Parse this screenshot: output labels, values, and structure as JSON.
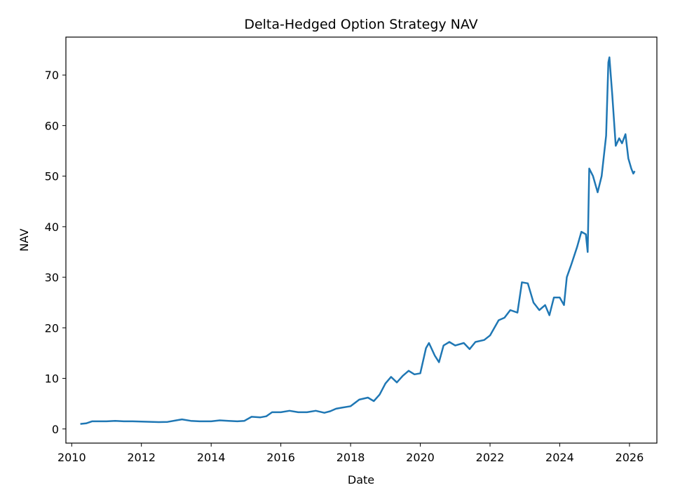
{
  "chart_data": {
    "type": "line",
    "title": "Delta-Hedged Option Strategy NAV",
    "xlabel": "Date",
    "ylabel": "NAV",
    "xlim": [
      "2009-11-01",
      "2026-10-15"
    ],
    "ylim": [
      -2.8,
      77.5
    ],
    "grid": false,
    "legend": "none",
    "x_ticks": [
      "2010",
      "2012",
      "2014",
      "2016",
      "2018",
      "2020",
      "2022",
      "2024",
      "2026"
    ],
    "y_ticks": [
      0,
      10,
      20,
      30,
      40,
      50,
      60,
      70
    ],
    "series": [
      {
        "color": "#1f77b4",
        "points": [
          [
            "2010-04-01",
            1.0
          ],
          [
            "2010-06-01",
            1.1
          ],
          [
            "2010-08-01",
            1.5
          ],
          [
            "2010-10-01",
            1.5
          ],
          [
            "2011-01-01",
            1.5
          ],
          [
            "2011-04-01",
            1.6
          ],
          [
            "2011-07-01",
            1.5
          ],
          [
            "2011-10-01",
            1.5
          ],
          [
            "2012-01-01",
            1.45
          ],
          [
            "2012-07-01",
            1.35
          ],
          [
            "2012-10-01",
            1.4
          ],
          [
            "2013-01-01",
            1.7
          ],
          [
            "2013-03-01",
            1.9
          ],
          [
            "2013-06-01",
            1.6
          ],
          [
            "2013-09-01",
            1.5
          ],
          [
            "2014-01-01",
            1.5
          ],
          [
            "2014-04-01",
            1.7
          ],
          [
            "2014-07-01",
            1.6
          ],
          [
            "2014-10-01",
            1.5
          ],
          [
            "2014-12-15",
            1.6
          ],
          [
            "2015-03-01",
            2.4
          ],
          [
            "2015-06-01",
            2.3
          ],
          [
            "2015-08-01",
            2.5
          ],
          [
            "2015-10-01",
            3.3
          ],
          [
            "2016-01-01",
            3.3
          ],
          [
            "2016-04-01",
            3.6
          ],
          [
            "2016-07-01",
            3.3
          ],
          [
            "2016-10-01",
            3.3
          ],
          [
            "2017-01-01",
            3.6
          ],
          [
            "2017-04-01",
            3.2
          ],
          [
            "2017-06-01",
            3.5
          ],
          [
            "2017-08-01",
            4.0
          ],
          [
            "2017-10-01",
            4.2
          ],
          [
            "2018-01-01",
            4.5
          ],
          [
            "2018-04-01",
            5.8
          ],
          [
            "2018-07-01",
            6.2
          ],
          [
            "2018-09-01",
            5.5
          ],
          [
            "2018-11-01",
            6.8
          ],
          [
            "2019-01-01",
            9.0
          ],
          [
            "2019-03-01",
            10.3
          ],
          [
            "2019-05-01",
            9.2
          ],
          [
            "2019-07-01",
            10.5
          ],
          [
            "2019-09-01",
            11.5
          ],
          [
            "2019-11-01",
            10.8
          ],
          [
            "2020-01-01",
            11.0
          ],
          [
            "2020-03-01",
            16.0
          ],
          [
            "2020-04-01",
            17.0
          ],
          [
            "2020-06-01",
            14.5
          ],
          [
            "2020-07-15",
            13.2
          ],
          [
            "2020-09-01",
            16.5
          ],
          [
            "2020-11-01",
            17.2
          ],
          [
            "2021-01-01",
            16.5
          ],
          [
            "2021-04-01",
            17.0
          ],
          [
            "2021-06-01",
            15.8
          ],
          [
            "2021-08-01",
            17.2
          ],
          [
            "2021-11-01",
            17.6
          ],
          [
            "2022-01-01",
            18.5
          ],
          [
            "2022-04-01",
            21.5
          ],
          [
            "2022-06-01",
            22.0
          ],
          [
            "2022-08-01",
            23.5
          ],
          [
            "2022-10-15",
            23.0
          ],
          [
            "2022-12-01",
            29.0
          ],
          [
            "2023-02-01",
            28.8
          ],
          [
            "2023-04-01",
            25.0
          ],
          [
            "2023-06-01",
            23.5
          ],
          [
            "2023-08-01",
            24.5
          ],
          [
            "2023-09-15",
            22.5
          ],
          [
            "2023-11-01",
            26.0
          ],
          [
            "2024-01-01",
            26.0
          ],
          [
            "2024-02-15",
            24.5
          ],
          [
            "2024-03-15",
            30.0
          ],
          [
            "2024-05-01",
            32.5
          ],
          [
            "2024-07-01",
            36.0
          ],
          [
            "2024-08-15",
            39.0
          ],
          [
            "2024-10-01",
            38.5
          ],
          [
            "2024-10-20",
            35.0
          ],
          [
            "2024-11-05",
            51.5
          ],
          [
            "2024-12-15",
            50.0
          ],
          [
            "2025-02-01",
            46.8
          ],
          [
            "2025-03-15",
            50.0
          ],
          [
            "2025-05-01",
            58.0
          ],
          [
            "2025-05-25",
            72.5
          ],
          [
            "2025-06-05",
            73.5
          ],
          [
            "2025-07-05",
            66.0
          ],
          [
            "2025-08-10",
            56.0
          ],
          [
            "2025-09-15",
            57.5
          ],
          [
            "2025-10-15",
            56.5
          ],
          [
            "2025-11-20",
            58.3
          ],
          [
            "2025-12-20",
            53.5
          ],
          [
            "2026-01-20",
            51.5
          ],
          [
            "2026-02-10",
            50.5
          ],
          [
            "2026-02-25",
            51.0
          ]
        ]
      }
    ]
  }
}
